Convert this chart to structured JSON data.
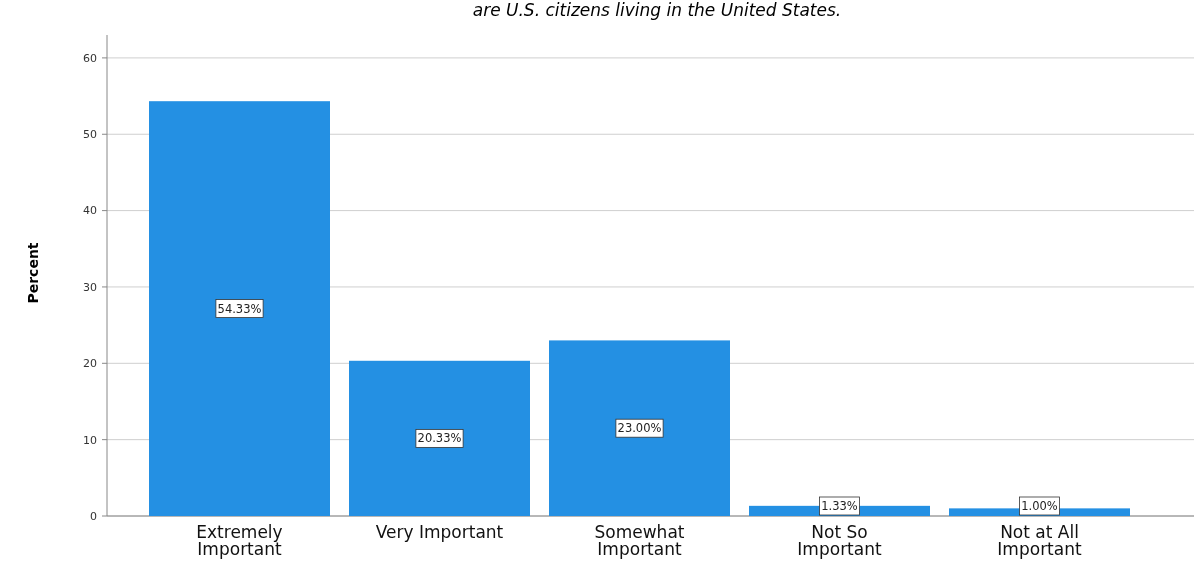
{
  "chart_data": {
    "type": "bar",
    "title": "are U.S. citizens living in the United States.",
    "ylabel": "Percent",
    "categories": [
      "Extremely Important",
      "Very Important",
      "Somewhat Important",
      "Not So Important",
      "Not at All Important"
    ],
    "values": [
      54.33,
      20.33,
      23.0,
      1.33,
      1.0
    ],
    "value_labels": [
      "54.33%",
      "20.33%",
      "23.00%",
      "1.33%",
      "1.00%"
    ],
    "color": "#2490e3",
    "ylim": [
      0,
      63
    ],
    "yticks": [
      0,
      10,
      20,
      30,
      40,
      50,
      60
    ],
    "grid": "y"
  }
}
